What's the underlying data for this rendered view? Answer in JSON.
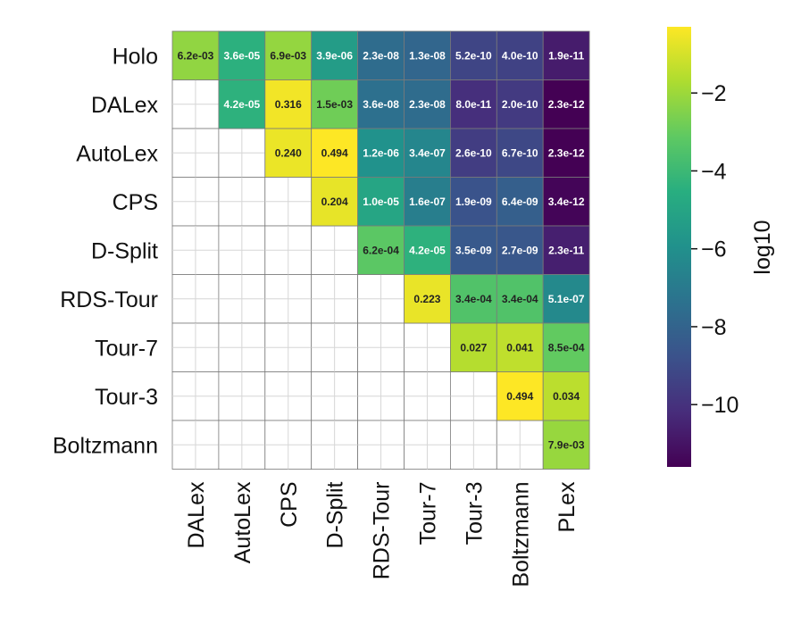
{
  "chart_data": {
    "type": "heatmap",
    "rows": [
      "Holo",
      "DALex",
      "AutoLex",
      "CPS",
      "D-Split",
      "RDS-Tour",
      "Tour-7",
      "Tour-3",
      "Boltzmann"
    ],
    "cols": [
      "DALex",
      "AutoLex",
      "CPS",
      "D-Split",
      "RDS-Tour",
      "Tour-7",
      "Tour-3",
      "Boltzmann",
      "PLex"
    ],
    "cells": [
      [
        "6.2e-03",
        "3.6e-05",
        "6.9e-03",
        "3.9e-06",
        "2.3e-08",
        "1.3e-08",
        "5.2e-10",
        "4.0e-10",
        "1.9e-11"
      ],
      [
        null,
        "4.2e-05",
        "0.316",
        "1.5e-03",
        "3.6e-08",
        "2.3e-08",
        "8.0e-11",
        "2.0e-10",
        "2.3e-12"
      ],
      [
        null,
        null,
        "0.240",
        "0.494",
        "1.2e-06",
        "3.4e-07",
        "2.6e-10",
        "6.7e-10",
        "2.3e-12"
      ],
      [
        null,
        null,
        null,
        "0.204",
        "1.0e-05",
        "1.6e-07",
        "1.9e-09",
        "6.4e-09",
        "3.4e-12"
      ],
      [
        null,
        null,
        null,
        null,
        "6.2e-04",
        "4.2e-05",
        "3.5e-09",
        "2.7e-09",
        "2.3e-11"
      ],
      [
        null,
        null,
        null,
        null,
        null,
        "0.223",
        "3.4e-04",
        "3.4e-04",
        "5.1e-07"
      ],
      [
        null,
        null,
        null,
        null,
        null,
        null,
        "0.027",
        "0.041",
        "8.5e-04"
      ],
      [
        null,
        null,
        null,
        null,
        null,
        null,
        null,
        "0.494",
        "0.034"
      ],
      [
        null,
        null,
        null,
        null,
        null,
        null,
        null,
        null,
        "7.9e-03"
      ]
    ],
    "colorbar": {
      "label": "log10",
      "ticks": [
        "−2",
        "−4",
        "−6",
        "−8",
        "−10"
      ],
      "tick_values": [
        -2,
        -4,
        -6,
        -8,
        -10
      ],
      "range": [
        -11.6,
        -0.3
      ],
      "colormap": "viridis"
    },
    "grid": true
  }
}
